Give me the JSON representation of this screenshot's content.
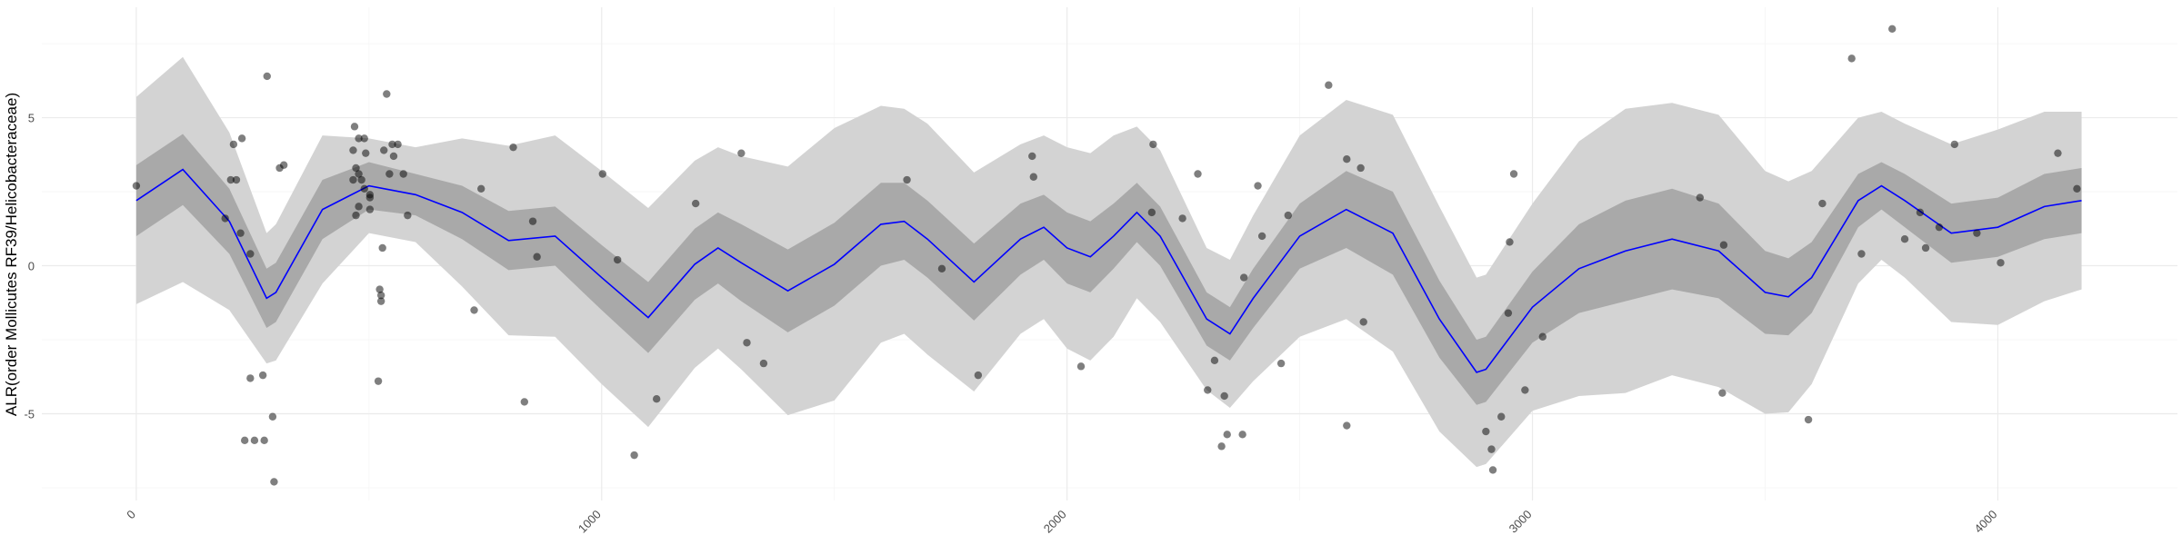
{
  "chart_data": {
    "type": "line",
    "ylabel": "ALR(order Mollicutes RF39/Helicobacteraceae)",
    "xlim": [
      -203,
      4386
    ],
    "ylim": [
      -7.93,
      8.73
    ],
    "xticks": [
      0,
      1000,
      2000,
      3000,
      4000
    ],
    "yticks": [
      -5,
      0,
      5
    ],
    "xminorticks": [
      500,
      1500,
      2500,
      3500
    ],
    "yminorticks": [
      -7.5,
      -2.5,
      2.5,
      7.5
    ],
    "grid": true,
    "fit_x": [
      0,
      100,
      200,
      280,
      300,
      400,
      500,
      600,
      700,
      800,
      900,
      1000,
      1100,
      1200,
      1250,
      1300,
      1400,
      1500,
      1600,
      1650,
      1700,
      1800,
      1900,
      1950,
      2000,
      2050,
      2100,
      2150,
      2200,
      2300,
      2350,
      2400,
      2500,
      2600,
      2700,
      2800,
      2880,
      2900,
      3000,
      3100,
      3200,
      3300,
      3400,
      3500,
      3550,
      3600,
      3700,
      3750,
      3800,
      3900,
      4000,
      4100,
      4180
    ],
    "outer_band": {
      "color": "#d3d3d3",
      "lower": [
        -1.3,
        -0.55,
        -1.5,
        -3.3,
        -3.2,
        -0.6,
        1.1,
        0.8,
        -0.7,
        -2.35,
        -2.4,
        -4.0,
        -5.45,
        -3.45,
        -2.8,
        -3.5,
        -5.05,
        -4.55,
        -2.6,
        -2.3,
        -3.0,
        -4.25,
        -2.3,
        -1.8,
        -2.8,
        -3.2,
        -2.4,
        -1.1,
        -1.9,
        -4.2,
        -4.8,
        -3.9,
        -2.4,
        -1.8,
        -2.9,
        -5.6,
        -6.8,
        -6.7,
        -4.9,
        -4.4,
        -4.3,
        -3.7,
        -4.1,
        -5.0,
        -4.95,
        -4.0,
        -0.6,
        0.2,
        -0.4,
        -1.9,
        -2.0,
        -1.2,
        -0.8
      ],
      "upper": [
        5.7,
        7.05,
        4.5,
        1.1,
        1.4,
        4.4,
        4.3,
        4.0,
        4.3,
        4.05,
        4.4,
        3.2,
        1.95,
        3.55,
        4.0,
        3.7,
        3.35,
        4.65,
        5.4,
        5.3,
        4.8,
        3.15,
        4.1,
        4.4,
        4.0,
        3.8,
        4.4,
        4.7,
        3.9,
        0.6,
        0.2,
        1.7,
        4.4,
        5.6,
        5.1,
        2.0,
        -0.4,
        -0.3,
        2.1,
        4.2,
        5.3,
        5.5,
        5.1,
        3.2,
        2.85,
        3.2,
        5.0,
        5.2,
        4.8,
        4.1,
        4.6,
        5.2,
        5.2
      ]
    },
    "inner_band": {
      "color": "#a9a9a9",
      "lower": [
        1.0,
        2.05,
        0.4,
        -2.1,
        -1.9,
        0.9,
        1.9,
        1.7,
        0.9,
        -0.15,
        0,
        -1.5,
        -2.95,
        -1.15,
        -0.6,
        -1.2,
        -2.25,
        -1.35,
        0,
        0.2,
        -0.4,
        -1.85,
        -0.3,
        0.2,
        -0.6,
        -0.9,
        -0.1,
        0.8,
        0,
        -2.7,
        -3.2,
        -2.1,
        -0.1,
        0.6,
        -0.3,
        -3.1,
        -4.7,
        -4.6,
        -2.6,
        -1.6,
        -1.2,
        -0.8,
        -1.1,
        -2.3,
        -2.35,
        -1.6,
        1.3,
        1.9,
        1.3,
        0.1,
        0.3,
        0.9,
        1.1
      ],
      "upper": [
        3.4,
        4.45,
        2.6,
        -0.1,
        0.1,
        2.9,
        3.5,
        3.1,
        2.7,
        1.85,
        2.0,
        0.7,
        -0.55,
        1.25,
        1.8,
        1.4,
        0.55,
        1.45,
        2.8,
        2.8,
        2.2,
        0.75,
        2.1,
        2.4,
        1.8,
        1.5,
        2.1,
        2.8,
        2.0,
        -0.9,
        -1.4,
        -0.1,
        2.1,
        3.2,
        2.5,
        -0.5,
        -2.5,
        -2.4,
        -0.2,
        1.4,
        2.2,
        2.6,
        2.1,
        0.5,
        0.25,
        0.8,
        3.1,
        3.5,
        3.1,
        2.1,
        2.3,
        3.1,
        3.3
      ]
    },
    "smooth": {
      "color": "#0000ff",
      "values": [
        2.2,
        3.25,
        1.5,
        -1.1,
        -0.9,
        1.9,
        2.7,
        2.4,
        1.8,
        0.85,
        1.0,
        -0.4,
        -1.75,
        0.05,
        0.6,
        0.1,
        -0.85,
        0.05,
        1.4,
        1.5,
        0.9,
        -0.55,
        0.9,
        1.3,
        0.6,
        0.3,
        1.0,
        1.8,
        1.0,
        -1.8,
        -2.3,
        -1.1,
        1.0,
        1.9,
        1.1,
        -1.8,
        -3.6,
        -3.5,
        -1.4,
        -0.1,
        0.5,
        0.9,
        0.5,
        -0.9,
        -1.05,
        -0.4,
        2.2,
        2.7,
        2.2,
        1.1,
        1.3,
        2.0,
        2.2
      ]
    },
    "points": {
      "color": "#000000",
      "x": [
        0,
        191,
        203,
        209,
        227,
        215,
        224,
        245,
        245,
        233,
        254,
        272,
        275,
        281,
        293,
        296,
        308,
        317,
        469,
        478,
        466,
        490,
        493,
        472,
        478,
        484,
        466,
        490,
        502,
        478,
        472,
        502,
        502,
        532,
        538,
        550,
        562,
        553,
        574,
        544,
        529,
        523,
        526,
        526,
        520,
        583,
        741,
        726,
        810,
        834,
        852,
        861,
        1002,
        1034,
        1070,
        1118,
        1202,
        1300,
        1312,
        1348,
        1656,
        1731,
        1809,
        1925,
        1928,
        2030,
        2185,
        2182,
        2248,
        2281,
        2302,
        2317,
        2332,
        2338,
        2344,
        2377,
        2380,
        2410,
        2419,
        2460,
        2475,
        2562,
        2601,
        2601,
        2631,
        2637,
        2900,
        2912,
        2915,
        2933,
        2948,
        2951,
        2960,
        2984,
        3022,
        3360,
        3408,
        3411,
        3593,
        3623,
        3686,
        3707,
        3773,
        3800,
        3833,
        3845,
        3874,
        3907,
        3955,
        4006,
        4129,
        4170
      ],
      "values": [
        2.7,
        1.6,
        2.9,
        4.1,
        4.3,
        2.9,
        1.1,
        0.4,
        -3.8,
        -5.9,
        -5.9,
        -3.7,
        -5.9,
        6.4,
        -5.1,
        -7.3,
        3.3,
        3.4,
        4.7,
        4.3,
        3.9,
        4.3,
        3.8,
        3.3,
        3.1,
        2.9,
        2.9,
        2.6,
        2.4,
        2.0,
        1.7,
        1.9,
        2.3,
        3.9,
        5.8,
        4.1,
        4.1,
        3.7,
        3.1,
        3.1,
        0.6,
        -0.8,
        -1.0,
        -1.2,
        -3.9,
        1.7,
        2.6,
        -1.5,
        4.0,
        -4.6,
        1.5,
        0.3,
        3.1,
        0.2,
        -6.4,
        -4.5,
        2.1,
        3.8,
        -2.6,
        -3.3,
        2.9,
        -0.1,
        -3.7,
        3.7,
        3.0,
        -3.4,
        4.1,
        1.8,
        1.6,
        3.1,
        -4.2,
        -3.2,
        -6.1,
        -4.4,
        -5.7,
        -5.7,
        -0.4,
        2.7,
        1.0,
        -3.3,
        1.7,
        6.1,
        3.6,
        -5.4,
        3.3,
        -1.9,
        -5.6,
        -6.2,
        -6.9,
        -5.1,
        -1.6,
        0.8,
        3.1,
        -4.2,
        -2.4,
        2.3,
        -4.3,
        0.7,
        -5.2,
        2.1,
        7.0,
        0.4,
        8.0,
        0.9,
        1.8,
        0.6,
        1.3,
        4.1,
        1.1,
        0.1,
        3.8,
        2.6
      ]
    }
  }
}
